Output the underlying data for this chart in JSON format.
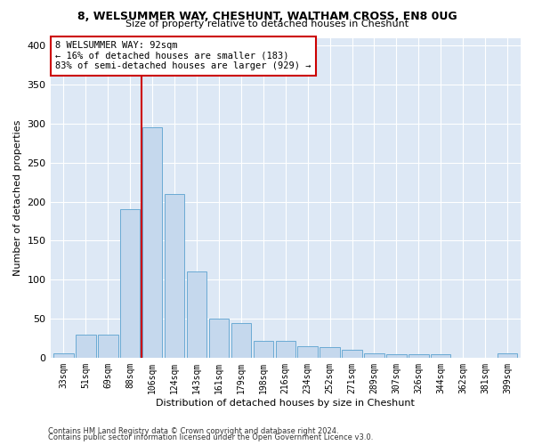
{
  "title1": "8, WELSUMMER WAY, CHESHUNT, WALTHAM CROSS, EN8 0UG",
  "title2": "Size of property relative to detached houses in Cheshunt",
  "xlabel": "Distribution of detached houses by size in Cheshunt",
  "ylabel": "Number of detached properties",
  "categories": [
    "33sqm",
    "51sqm",
    "69sqm",
    "88sqm",
    "106sqm",
    "124sqm",
    "143sqm",
    "161sqm",
    "179sqm",
    "198sqm",
    "216sqm",
    "234sqm",
    "252sqm",
    "271sqm",
    "289sqm",
    "307sqm",
    "326sqm",
    "344sqm",
    "362sqm",
    "381sqm",
    "399sqm"
  ],
  "bar_heights": [
    5,
    30,
    30,
    190,
    295,
    210,
    110,
    50,
    44,
    21,
    21,
    15,
    14,
    10,
    5,
    4,
    4,
    4,
    0,
    0,
    5
  ],
  "bar_color": "#c5d8ed",
  "bar_edge_color": "#6aaad4",
  "vline_x": 3.5,
  "vline_color": "#cc0000",
  "annotation_line1": "8 WELSUMMER WAY: 92sqm",
  "annotation_line2": "← 16% of detached houses are smaller (183)",
  "annotation_line3": "83% of semi-detached houses are larger (929) →",
  "annotation_box_color": "white",
  "annotation_box_edge": "#cc0000",
  "ylim": [
    0,
    410
  ],
  "yticks": [
    0,
    50,
    100,
    150,
    200,
    250,
    300,
    350,
    400
  ],
  "footer1": "Contains HM Land Registry data © Crown copyright and database right 2024.",
  "footer2": "Contains public sector information licensed under the Open Government Licence v3.0.",
  "plot_bg_color": "#dde8f5"
}
